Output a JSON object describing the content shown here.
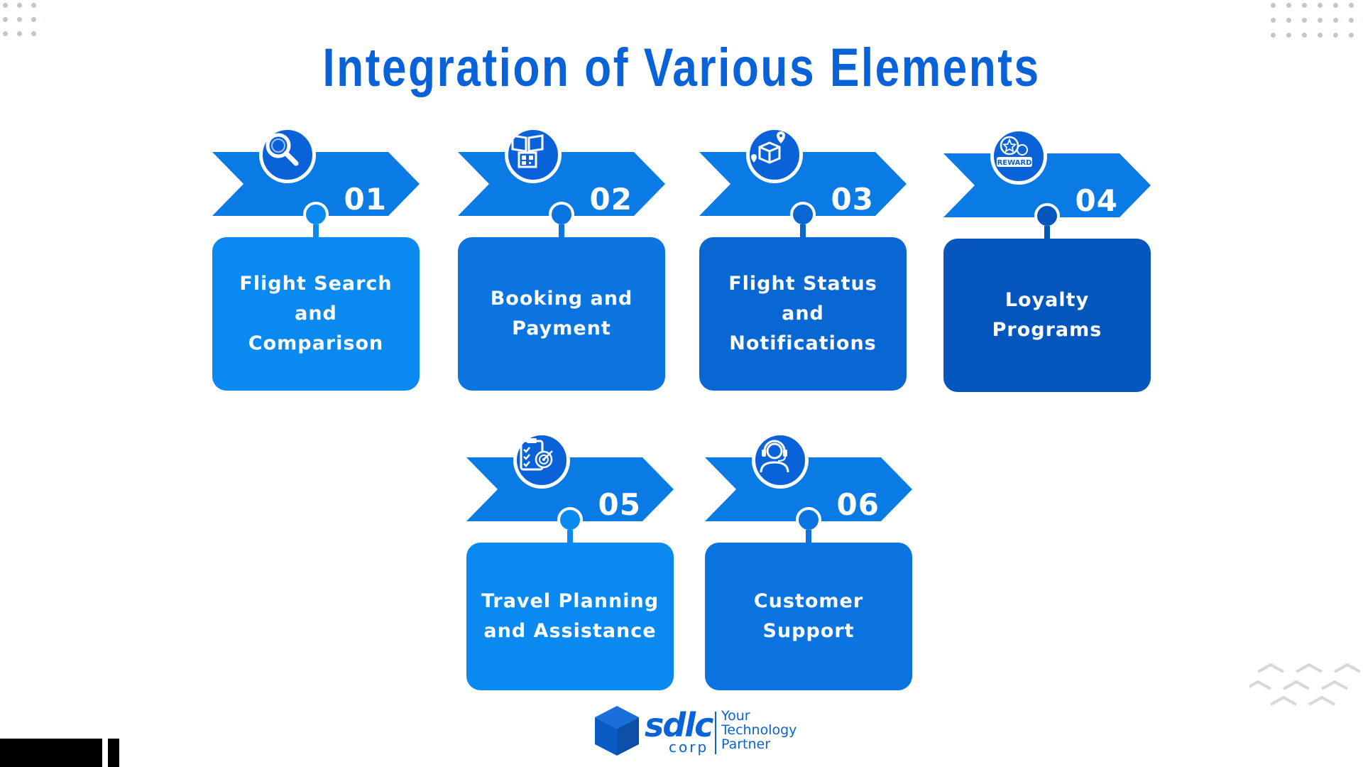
{
  "title": "Integration of Various Elements",
  "colors": {
    "title": "#0a62d8",
    "banner": "#0a7be5",
    "icon_circle": "#0a62d8",
    "card_light": "#0a8af0",
    "card_mid": "#0b74e0",
    "card_dark": "#0867d2",
    "card_darkest": "#0657bd",
    "dots": "#c2c6cc"
  },
  "items": [
    {
      "number": "01",
      "label_line1": "Flight Search and",
      "label_line2": "Comparison",
      "icon": "magnifier-icon",
      "card_color": "#0a8af0"
    },
    {
      "number": "02",
      "label_line1": "Booking and",
      "label_line2": "Payment",
      "icon": "booking-qr-icon",
      "card_color": "#0b74e0"
    },
    {
      "number": "03",
      "label_line1": "Flight Status and",
      "label_line2": "Notifications",
      "icon": "package-location-icon",
      "card_color": "#0867d2"
    },
    {
      "number": "04",
      "label_line1": "Loyalty",
      "label_line2": "Programs",
      "icon": "reward-badge-icon",
      "card_color": "#0657bd"
    },
    {
      "number": "05",
      "label_line1": "Travel Planning",
      "label_line2": "and Assistance",
      "icon": "checklist-target-icon",
      "card_color": "#0a8af0"
    },
    {
      "number": "06",
      "label_line1": "Customer",
      "label_line2": "Support",
      "icon": "headset-agent-icon",
      "card_color": "#0b74e0"
    }
  ],
  "reward_icon_text": "REWARD",
  "logo": {
    "brand": "sdlc",
    "sub": "corp",
    "tagline_line1": "Your",
    "tagline_line2": "Technology",
    "tagline_line3": "Partner"
  }
}
